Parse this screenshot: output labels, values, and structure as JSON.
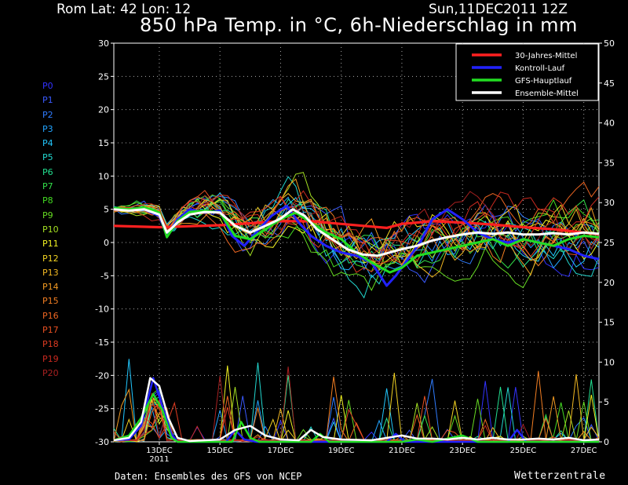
{
  "header": {
    "location": "Rom   Lat: 42 Lon: 12",
    "datetime": "Sun,11DEC2011 12Z",
    "title": "850 hPa Temp. in °C, 6h-Niederschlag in mm"
  },
  "footer": {
    "source": "Daten: Ensembles des GFS von NCEP",
    "brand": "Wetterzentrale"
  },
  "members": [
    {
      "label": "P0",
      "color": "#3232ff"
    },
    {
      "label": "P1",
      "color": "#3a5aff"
    },
    {
      "label": "P2",
      "color": "#2f7cff"
    },
    {
      "label": "P3",
      "color": "#22a4ff"
    },
    {
      "label": "P4",
      "color": "#22c8ff"
    },
    {
      "label": "P5",
      "color": "#22d8d0"
    },
    {
      "label": "P6",
      "color": "#22e090"
    },
    {
      "label": "P7",
      "color": "#33e04a"
    },
    {
      "label": "P8",
      "color": "#44dc22"
    },
    {
      "label": "P9",
      "color": "#66dc22"
    },
    {
      "label": "P10",
      "color": "#a4e022"
    },
    {
      "label": "P11",
      "color": "#f2f222"
    },
    {
      "label": "P12",
      "color": "#f2d222"
    },
    {
      "label": "P13",
      "color": "#f2b822"
    },
    {
      "label": "P14",
      "color": "#f29a22"
    },
    {
      "label": "P15",
      "color": "#f27e22"
    },
    {
      "label": "P16",
      "color": "#ee6622"
    },
    {
      "label": "P17",
      "color": "#e85022"
    },
    {
      "label": "P18",
      "color": "#e03c22"
    },
    {
      "label": "P19",
      "color": "#cc2a20"
    },
    {
      "label": "P20",
      "color": "#a82020"
    }
  ],
  "chart_data": {
    "type": "line",
    "title": "850 hPa Temp. in °C, 6h-Niederschlag in mm",
    "x_ticks": [
      {
        "label": "13DEC",
        "sub": "2011",
        "day": 13
      },
      {
        "label": "15DEC",
        "day": 15
      },
      {
        "label": "17DEC",
        "day": 17
      },
      {
        "label": "19DEC",
        "day": 19
      },
      {
        "label": "21DEC",
        "day": 21
      },
      {
        "label": "23DEC",
        "day": 23
      },
      {
        "label": "25DEC",
        "day": 25
      },
      {
        "label": "27DEC",
        "day": 27
      }
    ],
    "xlim_day": [
      11.5,
      27.5
    ],
    "y_left": {
      "ylim": [
        -30,
        30
      ],
      "ticks": [
        30,
        25,
        20,
        15,
        10,
        5,
        0,
        -5,
        -10,
        -15,
        -20,
        -25,
        -30
      ]
    },
    "y_right": {
      "ylim": [
        0,
        50
      ],
      "ticks": [
        50,
        45,
        40,
        35,
        30,
        25,
        20,
        15,
        10,
        5,
        0
      ]
    },
    "grid": true,
    "legend_position": "top-right",
    "legend": [
      {
        "name": "30-Jahres-Mittel",
        "color": "#ff2020"
      },
      {
        "name": "Kontroll-Lauf",
        "color": "#2222ff"
      },
      {
        "name": "GFS-Hauptlauf",
        "color": "#22dd22"
      },
      {
        "name": "Ensemble-Mittel",
        "color": "#ffffff"
      }
    ],
    "series_temp": [
      {
        "name": "30-Jahres-Mittel",
        "color": "#ff2020",
        "width": 3.2,
        "points": [
          [
            11.5,
            2.5
          ],
          [
            13,
            2.3
          ],
          [
            15,
            2.6
          ],
          [
            17,
            3.2
          ],
          [
            18,
            3.2
          ],
          [
            19,
            2.8
          ],
          [
            20,
            2.4
          ],
          [
            20.5,
            2.2
          ],
          [
            21,
            2.8
          ],
          [
            22,
            3.2
          ],
          [
            23,
            3.0
          ],
          [
            24,
            2.7
          ],
          [
            25,
            2.3
          ],
          [
            26,
            2.0
          ],
          [
            27,
            1.5
          ],
          [
            27.5,
            1.2
          ]
        ]
      },
      {
        "name": "Kontroll-Lauf",
        "color": "#2222ff",
        "width": 3,
        "points": [
          [
            11.5,
            5.2
          ],
          [
            12,
            4.8
          ],
          [
            12.5,
            5.0
          ],
          [
            13,
            4.0
          ],
          [
            13.25,
            1.0
          ],
          [
            13.6,
            3.5
          ],
          [
            14,
            5.0
          ],
          [
            14.5,
            4.5
          ],
          [
            15,
            4.8
          ],
          [
            15.4,
            1.0
          ],
          [
            15.8,
            -0.5
          ],
          [
            16.2,
            1.5
          ],
          [
            16.7,
            4.0
          ],
          [
            17.2,
            5.5
          ],
          [
            17.6,
            3.0
          ],
          [
            18,
            1.0
          ],
          [
            18.5,
            -0.5
          ],
          [
            19,
            -1.5
          ],
          [
            19.5,
            -2.0
          ],
          [
            20,
            -3.0
          ],
          [
            20.5,
            -6.5
          ],
          [
            20.8,
            -5.0
          ],
          [
            21.2,
            -2.5
          ],
          [
            21.6,
            0.0
          ],
          [
            22,
            3.5
          ],
          [
            22.5,
            5.0
          ],
          [
            23,
            3.5
          ],
          [
            23.5,
            1.5
          ],
          [
            24,
            0.5
          ],
          [
            24.5,
            0.0
          ],
          [
            25,
            0.5
          ],
          [
            25.5,
            0.0
          ],
          [
            26,
            -0.5
          ],
          [
            26.5,
            -1.0
          ],
          [
            27,
            -2.0
          ],
          [
            27.5,
            -2.5
          ]
        ]
      },
      {
        "name": "GFS-Hauptlauf",
        "color": "#22dd22",
        "width": 3,
        "points": [
          [
            11.5,
            5.2
          ],
          [
            12,
            5.0
          ],
          [
            12.5,
            5.3
          ],
          [
            13,
            4.5
          ],
          [
            13.25,
            0.8
          ],
          [
            13.6,
            3.2
          ],
          [
            14,
            4.6
          ],
          [
            14.5,
            4.8
          ],
          [
            15,
            4.5
          ],
          [
            15.5,
            1.0
          ],
          [
            16,
            0.5
          ],
          [
            16.5,
            2.0
          ],
          [
            17,
            3.5
          ],
          [
            17.5,
            4.5
          ],
          [
            18,
            3.0
          ],
          [
            18.5,
            1.5
          ],
          [
            19,
            0.5
          ],
          [
            19.5,
            -1.5
          ],
          [
            20,
            -3.0
          ],
          [
            20.6,
            -4.5
          ],
          [
            21,
            -3.8
          ],
          [
            21.5,
            -2.0
          ],
          [
            22,
            -1.5
          ],
          [
            22.5,
            -1.0
          ],
          [
            23,
            -0.5
          ],
          [
            23.5,
            0.0
          ],
          [
            24,
            0.5
          ],
          [
            24.5,
            -0.5
          ],
          [
            25,
            0.5
          ],
          [
            25.5,
            0.0
          ],
          [
            26,
            -0.5
          ],
          [
            26.5,
            0.5
          ],
          [
            27,
            1.0
          ],
          [
            27.5,
            0.8
          ]
        ]
      },
      {
        "name": "Ensemble-Mittel",
        "color": "#ffffff",
        "width": 3,
        "points": [
          [
            11.5,
            5.0
          ],
          [
            12,
            4.8
          ],
          [
            12.5,
            5.0
          ],
          [
            13,
            4.2
          ],
          [
            13.25,
            1.5
          ],
          [
            13.6,
            3.0
          ],
          [
            14,
            4.2
          ],
          [
            14.5,
            4.6
          ],
          [
            15,
            4.5
          ],
          [
            15.5,
            2.5
          ],
          [
            16,
            1.5
          ],
          [
            16.5,
            2.5
          ],
          [
            17,
            3.6
          ],
          [
            17.4,
            5.0
          ],
          [
            17.8,
            4.0
          ],
          [
            18.2,
            2.0
          ],
          [
            18.7,
            0.5
          ],
          [
            19.2,
            -1.0
          ],
          [
            19.7,
            -1.8
          ],
          [
            20.2,
            -2.0
          ],
          [
            20.6,
            -1.5
          ],
          [
            21,
            -1.0
          ],
          [
            21.5,
            -0.5
          ],
          [
            22,
            0.3
          ],
          [
            22.5,
            0.8
          ],
          [
            23,
            1.2
          ],
          [
            23.5,
            1.5
          ],
          [
            24,
            1.3
          ],
          [
            24.5,
            1.5
          ],
          [
            25,
            1.2
          ],
          [
            25.5,
            1.2
          ],
          [
            26,
            1.4
          ],
          [
            26.5,
            1.2
          ],
          [
            27,
            1.5
          ],
          [
            27.5,
            1.3
          ]
        ]
      }
    ],
    "series_precip": [
      {
        "name": "Kontroll-Lauf",
        "color": "#2222ff",
        "width": 2.5,
        "points": [
          [
            11.5,
            0.2
          ],
          [
            12,
            0.3
          ],
          [
            12.4,
            2.0
          ],
          [
            12.8,
            8.0
          ],
          [
            13.1,
            4.5
          ],
          [
            13.4,
            1.0
          ],
          [
            13.6,
            0
          ],
          [
            15.2,
            0
          ],
          [
            15.5,
            1.5
          ],
          [
            15.8,
            0.3
          ],
          [
            16.2,
            0
          ],
          [
            20.5,
            0
          ],
          [
            20.8,
            1.0
          ],
          [
            21.1,
            0
          ],
          [
            24.5,
            0
          ],
          [
            24.8,
            1.5
          ],
          [
            25.1,
            0
          ],
          [
            27.5,
            0
          ]
        ]
      },
      {
        "name": "GFS-Hauptlauf",
        "color": "#22dd22",
        "width": 2.5,
        "points": [
          [
            11.5,
            0.2
          ],
          [
            12,
            0.8
          ],
          [
            12.4,
            3.0
          ],
          [
            12.8,
            6.0
          ],
          [
            13.1,
            4.0
          ],
          [
            13.4,
            0.5
          ],
          [
            13.6,
            0
          ],
          [
            15.4,
            0
          ],
          [
            15.7,
            2.5
          ],
          [
            16.0,
            0.5
          ],
          [
            16.3,
            0
          ],
          [
            18.0,
            0
          ],
          [
            18.3,
            1.0
          ],
          [
            18.6,
            0
          ],
          [
            21.0,
            0
          ],
          [
            21.5,
            0.3
          ],
          [
            22.0,
            0
          ],
          [
            23.0,
            0.8
          ],
          [
            23.5,
            0
          ],
          [
            27.5,
            0
          ]
        ]
      },
      {
        "name": "Ensemble-Mittel",
        "color": "#ffffff",
        "width": 2.5,
        "points": [
          [
            11.5,
            0.2
          ],
          [
            12,
            0.5
          ],
          [
            12.4,
            2.5
          ],
          [
            12.7,
            8.0
          ],
          [
            13.0,
            7.0
          ],
          [
            13.3,
            3.0
          ],
          [
            13.6,
            0.5
          ],
          [
            14,
            0.1
          ],
          [
            15,
            0.3
          ],
          [
            15.5,
            1.5
          ],
          [
            16,
            2.0
          ],
          [
            16.5,
            0.8
          ],
          [
            17,
            0.3
          ],
          [
            17.6,
            0.2
          ],
          [
            18.0,
            1.5
          ],
          [
            18.4,
            0.6
          ],
          [
            19,
            0.3
          ],
          [
            20,
            0.2
          ],
          [
            21,
            0.8
          ],
          [
            21.5,
            0.4
          ],
          [
            22,
            0.4
          ],
          [
            22.5,
            0.3
          ],
          [
            23,
            0.5
          ],
          [
            23.5,
            0.3
          ],
          [
            24,
            0.5
          ],
          [
            24.5,
            0.3
          ],
          [
            25,
            0.3
          ],
          [
            25.5,
            0.4
          ],
          [
            26,
            0.3
          ],
          [
            26.5,
            0.5
          ],
          [
            27,
            0.2
          ],
          [
            27.5,
            0.3
          ]
        ]
      }
    ]
  }
}
